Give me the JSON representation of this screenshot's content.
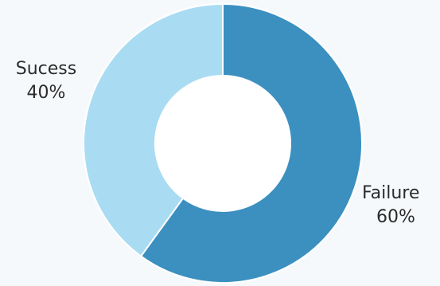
{
  "chart_data": {
    "type": "pie",
    "variant": "donut",
    "slices": [
      {
        "label": "Sucess",
        "value": 40,
        "value_label": "40%",
        "color": "#a9dcf2"
      },
      {
        "label": "Failure",
        "value": 60,
        "value_label": "60%",
        "color": "#3b90c0"
      }
    ],
    "background": "#f6f9fc"
  }
}
